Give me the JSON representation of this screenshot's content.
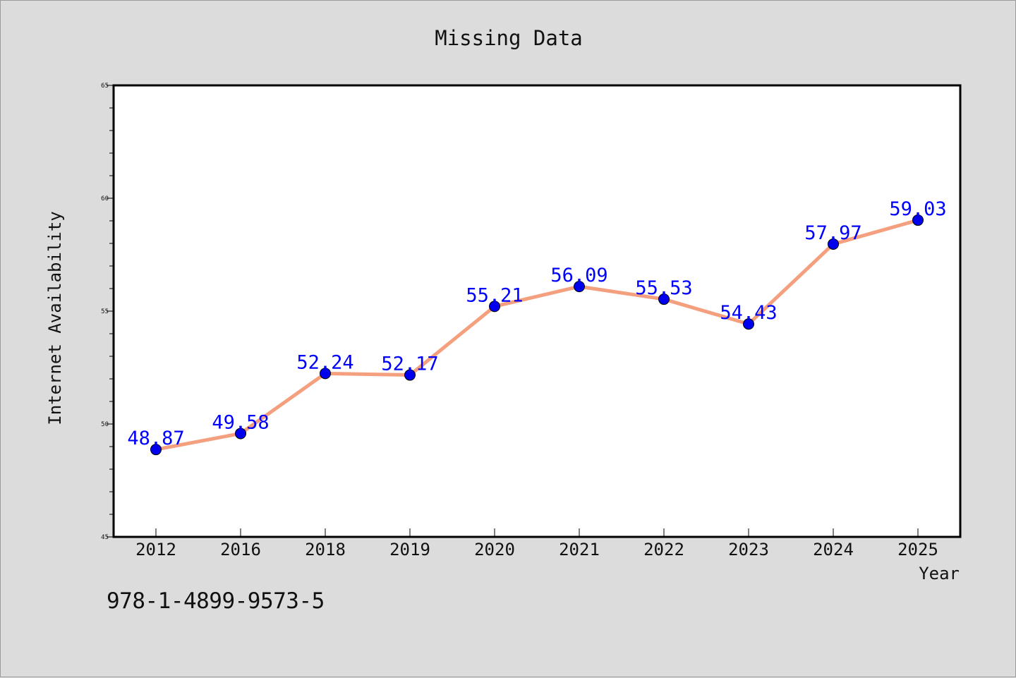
{
  "chart_data": {
    "type": "line",
    "title": "Missing Data",
    "xlabel": "Year",
    "ylabel": "Internet Availability",
    "categories": [
      "2012",
      "2016",
      "2018",
      "2019",
      "2020",
      "2021",
      "2022",
      "2023",
      "2024",
      "2025"
    ],
    "series": [
      {
        "values": [
          48.87,
          49.58,
          52.24,
          52.17,
          55.21,
          56.09,
          55.53,
          54.43,
          57.97,
          59.03
        ],
        "line_color": "#f4a07f",
        "marker_color": "#0000ee"
      }
    ],
    "data_labels": [
      "48.87",
      "49.58",
      "52.24",
      "52.17",
      "55.21",
      "56.09",
      "55.53",
      "54.43",
      "57.97",
      "59.03"
    ],
    "ylim": [
      45,
      65
    ],
    "yticks": [
      45,
      50,
      55,
      60,
      65
    ],
    "ytick_labels": [
      "45",
      "50",
      "55",
      "60",
      "65"
    ],
    "grid": false,
    "data_label_color": "#0000ff",
    "plot_background": "#ffffff",
    "figure_background": "#dcdcdc"
  },
  "footer_text": "978-1-4899-9573-5"
}
